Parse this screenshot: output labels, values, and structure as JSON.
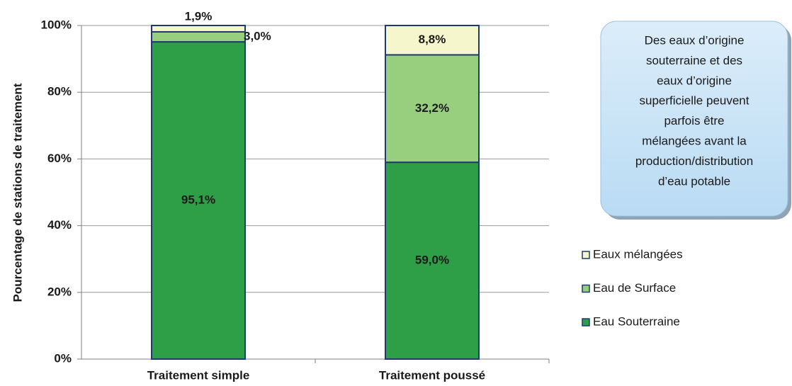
{
  "chart_data": {
    "type": "stacked-bar",
    "y_label": "Pourcentage de stations de traitement",
    "categories": [
      "Traitement simple",
      "Traitement poussé"
    ],
    "series": [
      {
        "name": "Eau Souterraine",
        "color": "#2e9e47",
        "values": [
          95.1,
          59.0
        ],
        "value_labels": [
          "95,1%",
          "59,0%"
        ]
      },
      {
        "name": "Eau de Surface",
        "color": "#98cf7f",
        "values": [
          3.0,
          32.2
        ],
        "value_labels": [
          "3,0%",
          "32,2%"
        ]
      },
      {
        "name": "Eaux mélangées",
        "color": "#f6f6cc",
        "values": [
          1.9,
          8.8
        ],
        "value_labels": [
          "1,9%",
          "8,8%"
        ]
      }
    ],
    "ylim": [
      0,
      100
    ],
    "yticks": [
      {
        "value": 0,
        "label": "0%"
      },
      {
        "value": 20,
        "label": "20%"
      },
      {
        "value": 40,
        "label": "40%"
      },
      {
        "value": 60,
        "label": "60%"
      },
      {
        "value": 80,
        "label": "80%"
      },
      {
        "value": 100,
        "label": "100%"
      }
    ],
    "grid": true,
    "annotation": [
      "Des eaux d’origine",
      "souterraine et des",
      "eaux d’origine",
      "superficielle peuvent",
      "parfois être",
      "mélangées avant la",
      "production/distribution",
      "d’eau potable"
    ]
  }
}
